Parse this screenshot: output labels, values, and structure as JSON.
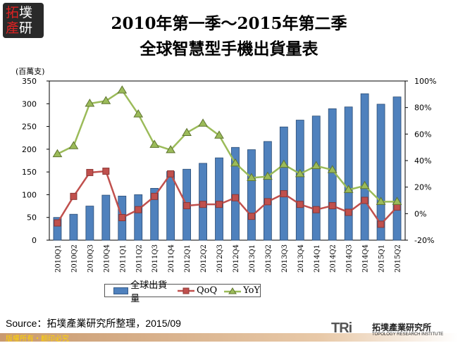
{
  "logo": {
    "line1a": "拓",
    "line1b": "墣",
    "line2a": "產",
    "line2b": "研"
  },
  "chart_data": {
    "type": "bar+line",
    "title_line1": "2010年第一季～2015年第二季",
    "title_line2": "全球智慧型手機出貨量表",
    "ylabel": "(百萬支)",
    "categories": [
      "2010Q1",
      "2010Q2",
      "2010Q3",
      "2010Q4",
      "2011Q1",
      "2011Q2",
      "2011Q3",
      "2011Q4",
      "2012Q1",
      "2012Q2",
      "2012Q3",
      "2012Q4",
      "2013Q1",
      "2013Q2",
      "2013Q3",
      "2013Q4",
      "2014Q1",
      "2014Q2",
      "2014Q3",
      "2014Q4",
      "2015Q1",
      "2015Q2"
    ],
    "ylim": [
      0,
      350
    ],
    "yticks": [
      "0",
      "50",
      "100",
      "150",
      "200",
      "250",
      "300",
      "350"
    ],
    "y2lim": [
      -20,
      100
    ],
    "y2ticks": [
      "-20%",
      "0%",
      "20%",
      "40%",
      "60%",
      "80%",
      "100%"
    ],
    "series": [
      {
        "name": "全球出貨量",
        "type": "bar",
        "axis": "left",
        "color": "#4F81BD",
        "values": [
          50,
          57,
          75,
          99,
          97,
          100,
          114,
          151,
          156,
          169,
          181,
          204,
          199,
          217,
          249,
          264,
          273,
          289,
          293,
          322,
          299,
          315
        ]
      },
      {
        "name": "QoQ",
        "type": "line",
        "marker": "square",
        "axis": "right",
        "color": "#C0504D",
        "values": [
          -7,
          13,
          31,
          32,
          -3,
          3,
          13,
          30,
          6,
          7,
          7,
          12,
          -2,
          9,
          15,
          7,
          3,
          6,
          1,
          10,
          -8,
          5
        ]
      },
      {
        "name": "YoY",
        "type": "line",
        "marker": "triangle",
        "axis": "right",
        "color": "#9BBB59",
        "values": [
          45,
          51,
          83,
          85,
          93,
          75,
          52,
          48,
          61,
          68,
          59,
          38,
          27,
          28,
          37,
          30,
          36,
          33,
          18,
          21,
          9,
          9
        ]
      }
    ],
    "grid": false,
    "legend": "bottom"
  },
  "source": "Source：拓墣產業研究所整理，2015/09",
  "copyright": "版權所有・翻印必究",
  "brand": {
    "mark": "TRi",
    "name_cn": "拓墣產業研究所",
    "name_en": "TOPOLOGY RESEARCH INSTITUTE"
  }
}
